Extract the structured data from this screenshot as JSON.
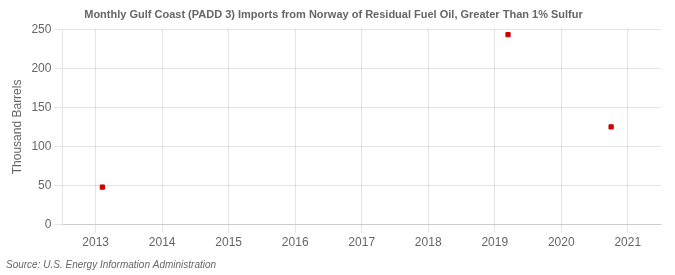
{
  "chart_data": {
    "type": "scatter",
    "title": "Monthly Gulf Coast (PADD 3) Imports from Norway of Residual Fuel Oil, Greater Than 1% Sulfur",
    "ylabel": "Thousand Barrels",
    "annotations": [
      "Source: U.S. Energy Information Administration"
    ],
    "x": [
      2013.1,
      2019.2,
      2020.75
    ],
    "values": [
      48,
      243,
      125
    ],
    "color": "#cc0000",
    "marker": "square",
    "xlim": [
      2012.5,
      2021.5
    ],
    "xticks": [
      2013,
      2014,
      2015,
      2016,
      2017,
      2018,
      2019,
      2020,
      2021
    ],
    "ylim": [
      0,
      250
    ],
    "yticks": [
      0,
      50,
      100,
      150,
      200,
      250
    ],
    "grid": true
  }
}
